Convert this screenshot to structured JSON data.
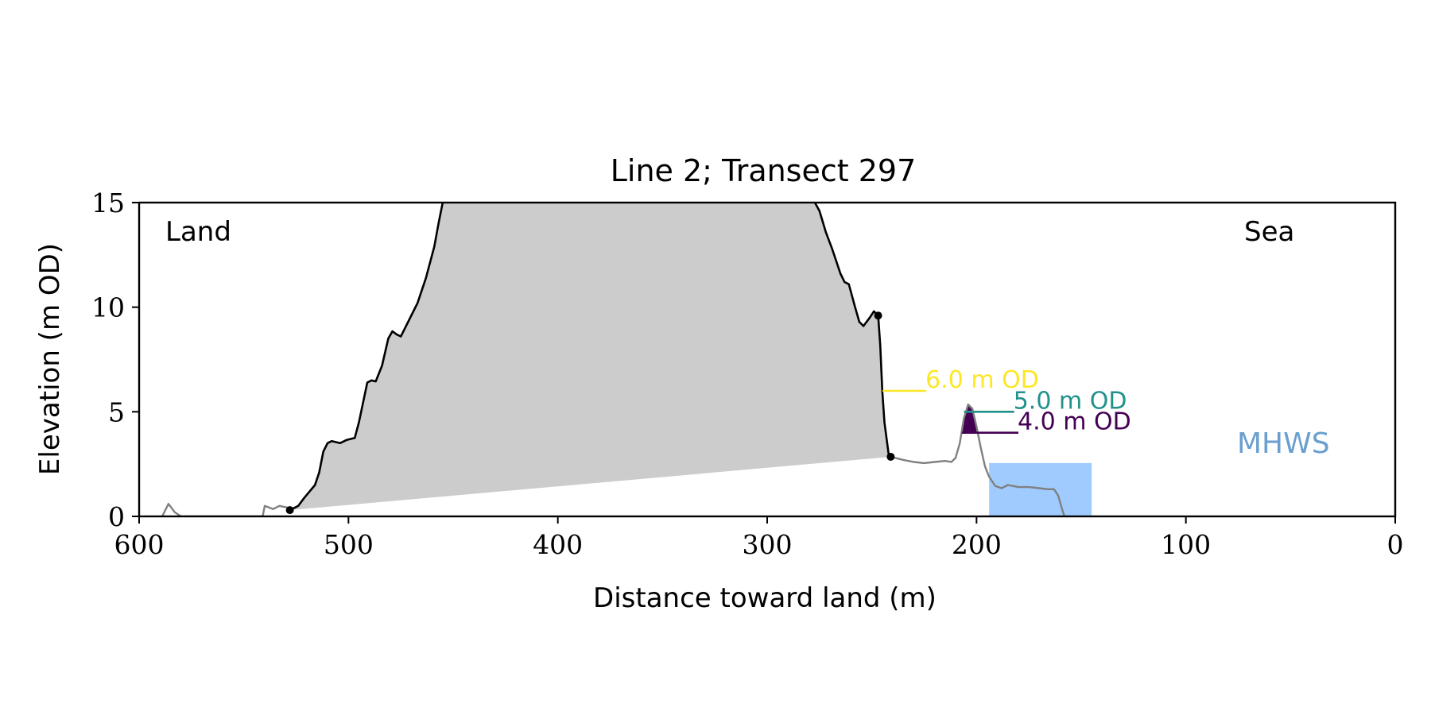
{
  "chart_data": {
    "type": "area",
    "title": "Line 2; Transect 297",
    "xlabel": "Distance toward land (m)",
    "ylabel": "Elevation (m OD)",
    "xlim": [
      600,
      0
    ],
    "ylim": [
      0,
      15
    ],
    "x_ticks": [
      600,
      500,
      400,
      300,
      200,
      100,
      0
    ],
    "y_ticks": [
      0,
      5,
      10,
      15
    ],
    "corner_labels": {
      "left": "Land",
      "right": "Sea"
    },
    "colors": {
      "profile_main": "#000000",
      "profile_outer": "#808080",
      "fill_above_6m": "#fde725",
      "fill_grey": "#cccccc",
      "fill_above_4m": "#440154",
      "mhws_fill": "#9fcbff",
      "mhws_label": "#6a9fcf",
      "level_6": "#fde725",
      "level_5": "#21918c",
      "level_4": "#440154"
    },
    "profile_outer_left": [
      [
        589,
        0
      ],
      [
        586,
        0.6
      ],
      [
        583,
        0.2
      ],
      [
        580,
        0
      ],
      [
        541,
        0
      ],
      [
        540,
        0.5
      ],
      [
        536,
        0.35
      ],
      [
        533,
        0.5
      ],
      [
        528,
        0.4
      ],
      [
        528,
        0.3
      ]
    ],
    "profile_main": [
      [
        528,
        0.3
      ],
      [
        524,
        0.5
      ],
      [
        521,
        0.9
      ],
      [
        516,
        1.5
      ],
      [
        514,
        2.1
      ],
      [
        512,
        3.1
      ],
      [
        510,
        3.5
      ],
      [
        508,
        3.6
      ],
      [
        504,
        3.5
      ],
      [
        501,
        3.65
      ],
      [
        497,
        3.75
      ],
      [
        495,
        4.5
      ],
      [
        491,
        6.4
      ],
      [
        489,
        6.5
      ],
      [
        487,
        6.45
      ],
      [
        484,
        7.2
      ],
      [
        481,
        8.5
      ],
      [
        479,
        8.85
      ],
      [
        477,
        8.7
      ],
      [
        475,
        8.6
      ],
      [
        471,
        9.4
      ],
      [
        467,
        10.2
      ],
      [
        463,
        11.4
      ],
      [
        459,
        12.9
      ],
      [
        457,
        14.0
      ],
      [
        454,
        15.5
      ],
      [
        280,
        15.5
      ],
      [
        275,
        14.6
      ],
      [
        272,
        13.6
      ],
      [
        269,
        12.8
      ],
      [
        265,
        11.6
      ],
      [
        263,
        11.2
      ],
      [
        261,
        11.1
      ],
      [
        258,
        10.0
      ],
      [
        256,
        9.3
      ],
      [
        254,
        9.1
      ],
      [
        251,
        9.5
      ],
      [
        249,
        9.8
      ],
      [
        247,
        9.6
      ],
      [
        246,
        8.2
      ],
      [
        245,
        6.0
      ],
      [
        244,
        4.5
      ],
      [
        242,
        3.0
      ],
      [
        241,
        2.85
      ]
    ],
    "profile_outer_right": [
      [
        241,
        2.85
      ],
      [
        235,
        2.7
      ],
      [
        230,
        2.6
      ],
      [
        225,
        2.55
      ],
      [
        220,
        2.6
      ],
      [
        215,
        2.65
      ],
      [
        212,
        2.6
      ],
      [
        210,
        2.8
      ],
      [
        208,
        3.5
      ],
      [
        206,
        4.7
      ],
      [
        204,
        5.35
      ],
      [
        202,
        5.15
      ],
      [
        200,
        4.3
      ],
      [
        198,
        3.3
      ],
      [
        196,
        2.4
      ],
      [
        194,
        1.9
      ],
      [
        191,
        1.45
      ],
      [
        188,
        1.35
      ],
      [
        185,
        1.5
      ],
      [
        180,
        1.4
      ],
      [
        175,
        1.4
      ],
      [
        170,
        1.35
      ],
      [
        166,
        1.3
      ],
      [
        163,
        1.3
      ],
      [
        161,
        1.0
      ],
      [
        159,
        0.3
      ],
      [
        158,
        0
      ]
    ],
    "endpoints": [
      [
        528,
        0.3
      ],
      [
        247,
        9.6
      ],
      [
        241,
        2.85
      ]
    ],
    "levels": [
      {
        "label": "6.0 m OD",
        "value": 6.0,
        "from_x": 244.9,
        "to_x": 224
      },
      {
        "label": "5.0 m OD",
        "value": 5.0,
        "from_x": 206,
        "to_x": 182
      },
      {
        "label": "4.0 m OD",
        "value": 4.0,
        "from_x": 207,
        "to_x": 180
      }
    ],
    "mhws": {
      "label": "MHWS",
      "x_from": 194,
      "x_to": 145,
      "value": 2.55
    }
  }
}
